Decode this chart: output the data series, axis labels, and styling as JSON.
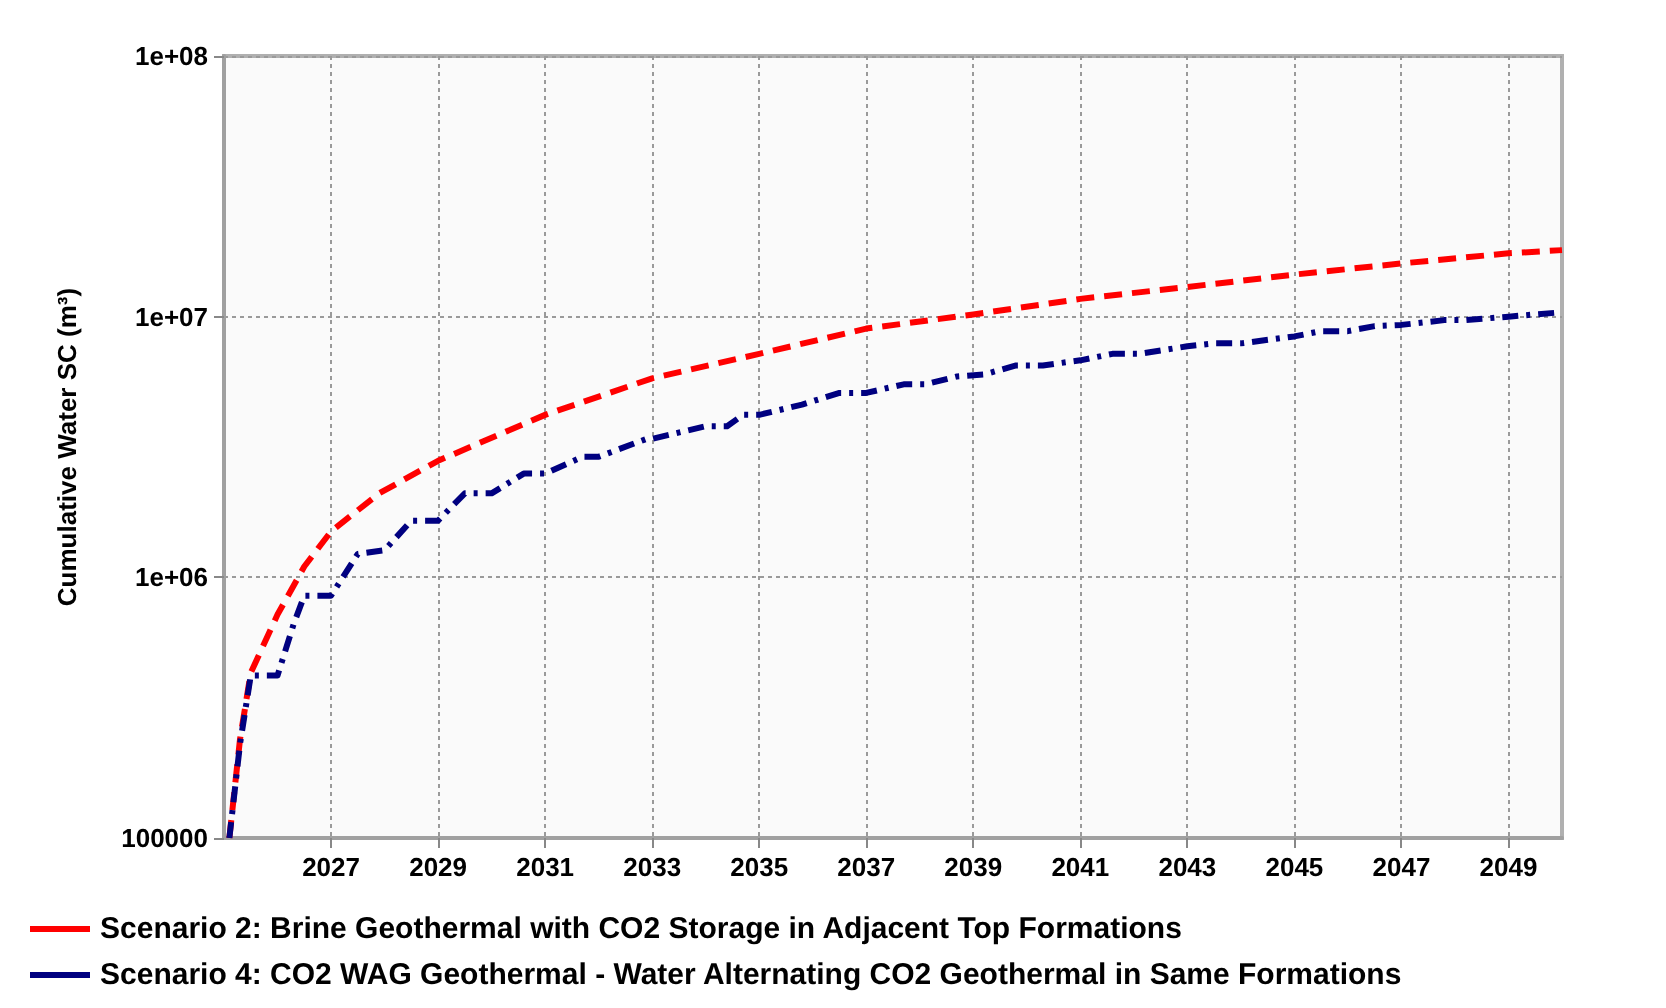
{
  "chart_data": {
    "type": "line",
    "ylabel": "Cumulative Water SC (m³)",
    "log": "y",
    "grid": true,
    "legend": "bottom",
    "marker": "none",
    "xlim": [
      2025,
      2050
    ],
    "xticks": [
      2027,
      2029,
      2031,
      2033,
      2035,
      2037,
      2039,
      2041,
      2043,
      2045,
      2047,
      2049
    ],
    "ylim": [
      100000,
      100000000
    ],
    "yticks": [
      100000,
      {
        "value": 1000000,
        "label": "1e+06"
      },
      {
        "value": 10000000,
        "label": "1e+07"
      },
      {
        "value": 100000000,
        "label": "1e+08"
      }
    ],
    "series": [
      {
        "name": "Scenario 2: Brine Geothermal with CO2 Storage in Adjacent Top Formations",
        "color": "#ff0000",
        "line_style": "dashed",
        "x": [
          2025.1,
          2025.3,
          2025.5,
          2026,
          2026.5,
          2027,
          2027.9,
          2029,
          2031,
          2033,
          2035,
          2037,
          2039,
          2041,
          2043,
          2045,
          2047,
          2049,
          2050
        ],
        "values": [
          100000,
          240000,
          430000,
          720000,
          1100000,
          1500000,
          2100000,
          2800000,
          4200000,
          5800000,
          7200000,
          9000000,
          10200000,
          11700000,
          13000000,
          14500000,
          16000000,
          17500000,
          18000000
        ]
      },
      {
        "name": "Scenario 4: CO2 WAG Geothermal - Water Alternating CO2 Geothermal in Same Formations",
        "color": "#000080",
        "line_style": "dashdot",
        "x": [
          2025.1,
          2025.3,
          2025.5,
          2026,
          2026.3,
          2026.5,
          2027,
          2027.5,
          2028,
          2028.5,
          2029,
          2029.5,
          2030,
          2030.6,
          2031,
          2031.7,
          2032,
          2032.9,
          2033,
          2034,
          2034.4,
          2034.7,
          2035,
          2035.8,
          2036.5,
          2037,
          2037.7,
          2038.1,
          2038.7,
          2039.2,
          2039.8,
          2040.3,
          2041,
          2041.6,
          2042.1,
          2043,
          2043.5,
          2044,
          2045,
          2045.5,
          2046,
          2046.5,
          2047,
          2047.8,
          2048.2,
          2049,
          2050
        ],
        "values": [
          100000,
          230000,
          420000,
          420000,
          660000,
          850000,
          850000,
          1230000,
          1270000,
          1650000,
          1650000,
          2100000,
          2100000,
          2500000,
          2500000,
          2900000,
          2900000,
          3400000,
          3400000,
          3800000,
          3800000,
          4200000,
          4200000,
          4600000,
          5100000,
          5100000,
          5500000,
          5500000,
          5900000,
          6000000,
          6500000,
          6500000,
          6800000,
          7200000,
          7200000,
          7700000,
          7900000,
          7900000,
          8400000,
          8800000,
          8800000,
          9200000,
          9300000,
          9700000,
          9700000,
          10000000,
          10400000
        ]
      }
    ]
  }
}
